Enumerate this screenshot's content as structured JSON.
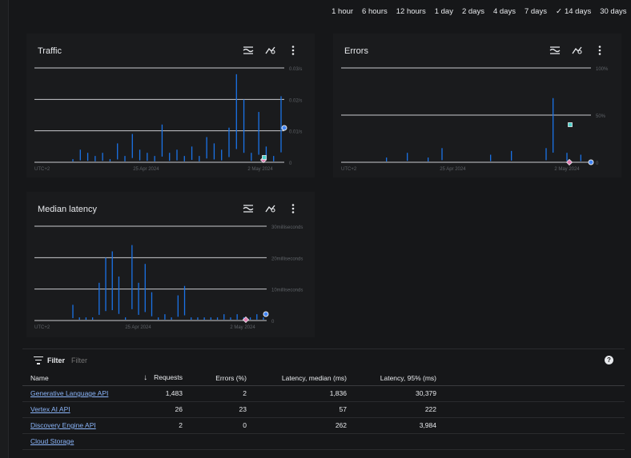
{
  "time_ranges": [
    {
      "label": "1 hour",
      "selected": false
    },
    {
      "label": "6 hours",
      "selected": false
    },
    {
      "label": "12 hours",
      "selected": false
    },
    {
      "label": "1 day",
      "selected": false
    },
    {
      "label": "2 days",
      "selected": false
    },
    {
      "label": "4 days",
      "selected": false
    },
    {
      "label": "7 days",
      "selected": false
    },
    {
      "label": "14 days",
      "selected": true
    },
    {
      "label": "30 days",
      "selected": false
    }
  ],
  "panels": {
    "traffic": {
      "title": "Traffic"
    },
    "errors": {
      "title": "Errors"
    },
    "latency": {
      "title": "Median latency"
    }
  },
  "chart_data": [
    {
      "type": "line",
      "title": "Traffic",
      "y_ticks": [
        "0.03/s",
        "0.02/s",
        "0.01/s",
        "0"
      ],
      "x_ticks": [
        "UTC+2",
        "25 Apr 2024",
        "2 May 2024"
      ],
      "grid": true,
      "series": [
        {
          "values": [
            0.001,
            0.004,
            0.003,
            0.002,
            0.003,
            0.001,
            0.006,
            0.002,
            0.009,
            0.004,
            0.003,
            0.002,
            0.012,
            0.003,
            0.004,
            0.002,
            0.005,
            0.002,
            0.008,
            0.006,
            0.004,
            0.011,
            0.028,
            0.02,
            0.003,
            0.016,
            0.005,
            0.002,
            0.021
          ]
        }
      ]
    },
    {
      "type": "line",
      "title": "Errors",
      "y_ticks": [
        "100%",
        "50%",
        "0"
      ],
      "x_ticks": [
        "UTC+2",
        "25 Apr 2024",
        "2 May 2024"
      ],
      "grid": true,
      "series": [
        {
          "values": [
            0,
            5,
            0,
            0,
            10,
            0,
            0,
            5,
            0,
            15,
            0,
            0,
            0,
            0,
            0,
            0,
            8,
            0,
            0,
            12,
            0,
            0,
            0,
            0,
            15,
            68,
            0,
            10,
            0,
            8,
            0
          ]
        }
      ]
    },
    {
      "type": "line",
      "title": "Median latency",
      "y_ticks": [
        "30milliseconds",
        "20milliseconds",
        "10milliseconds",
        "0"
      ],
      "x_ticks": [
        "UTC+2",
        "25 Apr 2024",
        "2 May 2024"
      ],
      "grid": true,
      "series": [
        {
          "values": [
            5,
            1,
            1,
            1,
            12,
            20,
            22,
            14,
            1,
            24,
            12,
            18,
            9,
            1,
            2,
            1,
            8,
            11,
            1,
            1,
            1,
            1,
            1,
            2,
            1,
            2,
            1,
            1,
            2,
            1
          ]
        }
      ]
    }
  ],
  "filter": {
    "label": "Filter",
    "placeholder": "Filter"
  },
  "table": {
    "columns": [
      "Name",
      "Requests",
      "Errors (%)",
      "Latency, median (ms)",
      "Latency, 95% (ms)"
    ],
    "rows": [
      {
        "name": "Generative Language API",
        "requests": "1,483",
        "errors": "2",
        "lat_median": "1,836",
        "lat_95": "30,379"
      },
      {
        "name": "Vertex AI API",
        "requests": "26",
        "errors": "23",
        "lat_median": "57",
        "lat_95": "222"
      },
      {
        "name": "Discovery Engine API",
        "requests": "2",
        "errors": "0",
        "lat_median": "262",
        "lat_95": "3,984"
      },
      {
        "name": "Cloud Storage",
        "requests": "",
        "errors": "",
        "lat_median": "",
        "lat_95": ""
      }
    ]
  },
  "colors": {
    "series": "#1a73e8",
    "grid": "#e8eaed",
    "marker_blue": "#4285f4",
    "marker_pink": "#e07bb0",
    "marker_teal": "#4dd0c8"
  }
}
